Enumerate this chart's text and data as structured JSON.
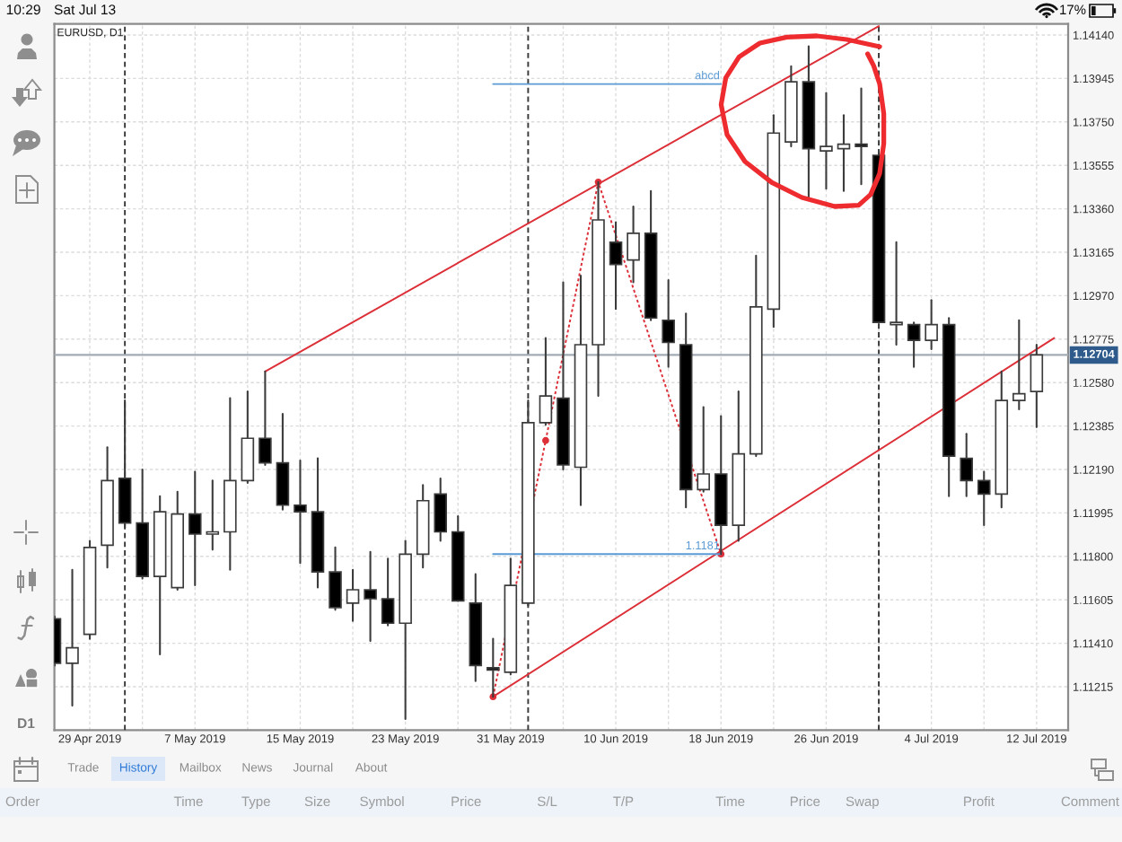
{
  "chart_data": {
    "type": "candlestick",
    "title": "EURUSD, D1",
    "categories": [
      null,
      null,
      "29 Apr 2019",
      null,
      null,
      null,
      null,
      null,
      "7 May 2019",
      null,
      null,
      null,
      null,
      null,
      "15 May 2019",
      null,
      null,
      null,
      null,
      null,
      "23 May 2019",
      null,
      null,
      null,
      null,
      null,
      "31 May 2019",
      null,
      null,
      null,
      null,
      null,
      "10 Jun 2019",
      null,
      null,
      null,
      null,
      null,
      "18 Jun 2019",
      null,
      null,
      null,
      null,
      null,
      "26 Jun 2019",
      null,
      null,
      null,
      null,
      null,
      "4 Jul 2019",
      null,
      null,
      null,
      null,
      null,
      "12 Jul 2019",
      null
    ],
    "ohlc": [
      [
        1.1152,
        1.1153,
        1.1131,
        1.1132
      ],
      [
        1.1132,
        1.1174,
        1.1113,
        1.1139
      ],
      [
        1.1145,
        1.1187,
        1.1143,
        1.1184
      ],
      [
        1.1185,
        1.1229,
        1.1175,
        1.1214
      ],
      [
        1.1215,
        1.125,
        1.1193,
        1.1195
      ],
      [
        1.1195,
        1.1219,
        1.117,
        1.1171
      ],
      [
        1.1171,
        1.1207,
        1.1136,
        1.12
      ],
      [
        1.1166,
        1.1209,
        1.1165,
        1.1199
      ],
      [
        1.1199,
        1.1218,
        1.1167,
        1.119
      ],
      [
        1.119,
        1.1214,
        1.1183,
        1.1191
      ],
      [
        1.1191,
        1.1251,
        1.1174,
        1.1214
      ],
      [
        1.1214,
        1.1254,
        1.1213,
        1.1233
      ],
      [
        1.1233,
        1.1263,
        1.1221,
        1.1222
      ],
      [
        1.1222,
        1.1244,
        1.1201,
        1.1203
      ],
      [
        1.1203,
        1.1223,
        1.1177,
        1.12
      ],
      [
        1.12,
        1.1224,
        1.1166,
        1.1173
      ],
      [
        1.1173,
        1.1184,
        1.1156,
        1.1157
      ],
      [
        1.1159,
        1.1174,
        1.1151,
        1.1165
      ],
      [
        1.1165,
        1.1182,
        1.1142,
        1.1161
      ],
      [
        1.1161,
        1.1179,
        1.1149,
        1.115
      ],
      [
        1.115,
        1.1187,
        1.1107,
        1.1181
      ],
      [
        1.1181,
        1.1212,
        1.1175,
        1.1205
      ],
      [
        1.1208,
        1.1215,
        1.1187,
        1.1191
      ],
      [
        1.1191,
        1.1198,
        1.116,
        1.116
      ],
      [
        1.1159,
        1.1172,
        1.1124,
        1.1131
      ],
      [
        1.113,
        1.1143,
        1.1117,
        1.1129
      ],
      [
        1.1128,
        1.1179,
        1.1127,
        1.1167
      ],
      [
        1.1159,
        1.125,
        1.1158,
        1.124
      ],
      [
        1.124,
        1.1278,
        1.1239,
        1.1252
      ],
      [
        1.1251,
        1.1303,
        1.1219,
        1.1221
      ],
      [
        1.122,
        1.1306,
        1.1203,
        1.1275
      ],
      [
        1.1275,
        1.1348,
        1.1252,
        1.1331
      ],
      [
        1.1321,
        1.133,
        1.1291,
        1.1311
      ],
      [
        1.1313,
        1.1337,
        1.1303,
        1.1325
      ],
      [
        1.1325,
        1.1344,
        1.1286,
        1.1287
      ],
      [
        1.1286,
        1.1304,
        1.1265,
        1.1276
      ],
      [
        1.1275,
        1.1289,
        1.1202,
        1.121
      ],
      [
        1.121,
        1.1247,
        1.1209,
        1.1217
      ],
      [
        1.1217,
        1.1243,
        1.1181,
        1.1194
      ],
      [
        1.1194,
        1.1254,
        1.1187,
        1.1226
      ],
      [
        1.1226,
        1.1315,
        1.1225,
        1.1292
      ],
      [
        1.1291,
        1.1378,
        1.1283,
        1.137
      ],
      [
        1.1366,
        1.14,
        1.1364,
        1.1393
      ],
      [
        1.1393,
        1.1409,
        1.1341,
        1.1363
      ],
      [
        1.1362,
        1.1388,
        1.1345,
        1.1364
      ],
      [
        1.1363,
        1.1378,
        1.1344,
        1.1365
      ],
      [
        1.1365,
        1.139,
        1.1347,
        1.1364
      ],
      [
        1.136,
        1.1361,
        1.1285,
        1.1285
      ],
      [
        1.1284,
        1.1321,
        1.1275,
        1.1285
      ],
      [
        1.1284,
        1.1285,
        1.1265,
        1.1277
      ],
      [
        1.1277,
        1.1295,
        1.1273,
        1.1284
      ],
      [
        1.1284,
        1.1287,
        1.1207,
        1.1225
      ],
      [
        1.1224,
        1.1235,
        1.1207,
        1.1214
      ],
      [
        1.1214,
        1.1218,
        1.1194,
        1.1208
      ],
      [
        1.1208,
        1.1263,
        1.1202,
        1.125
      ],
      [
        1.125,
        1.1286,
        1.1246,
        1.1253
      ],
      [
        1.1254,
        1.1275,
        1.1238,
        1.12704
      ],
      null
    ],
    "colors": [
      "#000000",
      "#ffffff",
      "#ffffff",
      "#ffffff",
      "#000000",
      "#000000",
      "#ffffff",
      "#ffffff",
      "#000000",
      "#ffffff",
      "#ffffff",
      "#ffffff",
      "#000000",
      "#000000",
      "#000000",
      "#000000",
      "#000000",
      "#ffffff",
      "#000000",
      "#000000",
      "#ffffff",
      "#ffffff",
      "#000000",
      "#000000",
      "#000000",
      "#000000",
      "#ffffff",
      "#ffffff",
      "#ffffff",
      "#000000",
      "#ffffff",
      "#ffffff",
      "#000000",
      "#ffffff",
      "#000000",
      "#000000",
      "#000000",
      "#ffffff",
      "#000000",
      "#ffffff",
      "#ffffff",
      "#ffffff",
      "#ffffff",
      "#000000",
      "#ffffff",
      "#ffffff",
      "#000000",
      "#000000",
      "#ffffff",
      "#000000",
      "#ffffff",
      "#000000",
      "#000000",
      "#000000",
      "#ffffff",
      "#ffffff",
      "#ffffff",
      null
    ],
    "color": "#3c3c3c",
    "series": [
      {
        "type": "line",
        "color": "#dc2f38",
        "line_style": "solid",
        "values": [
          null,
          null,
          null,
          null,
          null,
          null,
          null,
          null,
          null,
          null,
          null,
          null,
          1.1263,
          null,
          null,
          null,
          null,
          null,
          null,
          null,
          null,
          null,
          null,
          null,
          null,
          null,
          null,
          null,
          null,
          null,
          null,
          null,
          null,
          null,
          null,
          null,
          null,
          null,
          null,
          null,
          null,
          null,
          null,
          null,
          null,
          null,
          null,
          1.1418,
          null,
          null,
          null,
          null,
          null,
          null,
          null,
          null,
          null,
          null
        ]
      },
      {
        "type": "line",
        "color": "#dc2f38",
        "line_style": "solid",
        "values": [
          null,
          null,
          null,
          null,
          null,
          null,
          null,
          null,
          null,
          null,
          null,
          null,
          null,
          null,
          null,
          null,
          null,
          null,
          null,
          null,
          null,
          null,
          null,
          null,
          null,
          1.1117,
          null,
          null,
          null,
          null,
          null,
          null,
          null,
          null,
          null,
          null,
          null,
          null,
          null,
          null,
          null,
          null,
          null,
          null,
          null,
          null,
          null,
          null,
          null,
          null,
          null,
          null,
          null,
          null,
          null,
          null,
          null,
          1.1278
        ]
      },
      {
        "type": "line",
        "color": "#dc2f38",
        "line_style": "dotted",
        "marker": "circle",
        "values": [
          null,
          null,
          null,
          null,
          null,
          null,
          null,
          null,
          null,
          null,
          null,
          null,
          null,
          null,
          null,
          null,
          null,
          null,
          null,
          null,
          null,
          null,
          null,
          null,
          null,
          1.1117,
          null,
          null,
          1.1232,
          null,
          null,
          1.1348,
          null,
          null,
          null,
          null,
          null,
          null,
          1.1181,
          null,
          null,
          null,
          null,
          null,
          null,
          null,
          null,
          null,
          null,
          null,
          null,
          null,
          null,
          null,
          null,
          null,
          null,
          null
        ]
      },
      {
        "type": "line",
        "name": "abcd",
        "color": "#5b9bd5",
        "values": [
          null,
          null,
          null,
          null,
          null,
          null,
          null,
          null,
          null,
          null,
          null,
          null,
          null,
          null,
          null,
          null,
          null,
          null,
          null,
          null,
          null,
          null,
          null,
          null,
          null,
          1.1392,
          null,
          null,
          null,
          null,
          null,
          null,
          null,
          null,
          null,
          null,
          null,
          null,
          1.1392,
          null,
          null,
          null,
          null,
          null,
          null,
          null,
          null,
          null,
          null,
          null,
          null,
          null,
          null,
          null,
          null,
          null,
          null,
          null
        ]
      },
      {
        "type": "line",
        "name": "1.1181",
        "color": "#5b9bd5",
        "values": [
          null,
          null,
          null,
          null,
          null,
          null,
          null,
          null,
          null,
          null,
          null,
          null,
          null,
          null,
          null,
          null,
          null,
          null,
          null,
          null,
          null,
          null,
          null,
          null,
          null,
          1.1181,
          null,
          null,
          null,
          null,
          null,
          null,
          null,
          null,
          null,
          null,
          null,
          null,
          1.1181,
          null,
          null,
          null,
          null,
          null,
          null,
          null,
          null,
          null,
          null,
          null,
          null,
          null,
          null,
          null,
          null,
          null,
          null,
          null
        ]
      }
    ],
    "ref_lines": [
      {
        "axis": "y",
        "value": 1.12704,
        "label": "1.12704",
        "color": "#a3abb5"
      }
    ],
    "ylim": [
      1.1102,
      1.1419
    ],
    "yticks": [
      1.11215,
      {
        "value": 1.1141,
        "label": "1.11410"
      },
      1.11605,
      {
        "value": 1.118,
        "label": "1.11800"
      },
      1.11995,
      {
        "value": 1.1219,
        "label": "1.12190"
      },
      1.12385,
      {
        "value": 1.1258,
        "label": "1.12580"
      },
      1.12775,
      {
        "value": 1.1297,
        "label": "1.12970"
      },
      1.13165,
      {
        "value": 1.1336,
        "label": "1.13360"
      },
      1.13555,
      {
        "value": 1.1375,
        "label": "1.13750"
      },
      1.13945,
      {
        "value": 1.1414,
        "label": "1.14140"
      }
    ],
    "grid": true,
    "annotations": [
      "10:29",
      "Sat Jul 13",
      "17%",
      "D1",
      "Trade",
      "History",
      "Mailbox",
      "News",
      "Journal",
      "About",
      "Order",
      "Time",
      "Type",
      "Size",
      "Symbol",
      "Price",
      "S/L",
      "T/P",
      "Time",
      "Price",
      "Swap",
      "Profit",
      "Comment"
    ]
  }
}
